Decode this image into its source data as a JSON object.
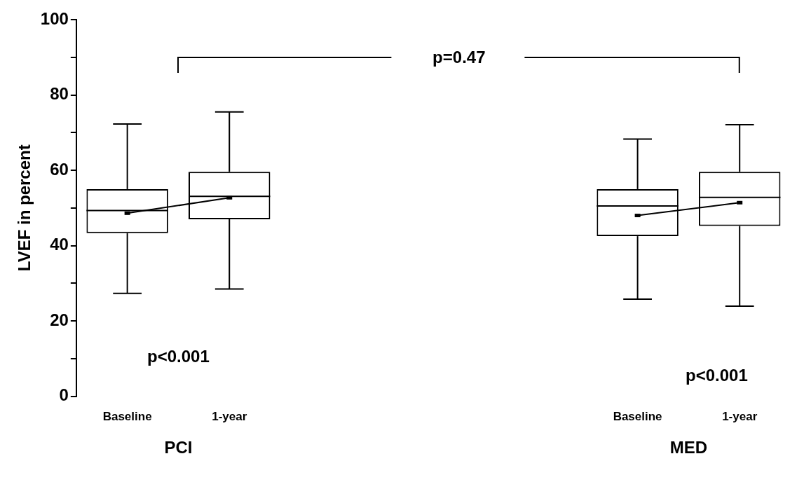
{
  "chart_data": {
    "type": "box",
    "ylabel": "LVEF in percent",
    "categories": [
      "Baseline",
      "1-year",
      null,
      null,
      null,
      "Baseline",
      "1-year"
    ],
    "boxes": [
      {
        "low": 27.3,
        "q1": 43.3,
        "median": 49.3,
        "q3": 55,
        "high": 72.3,
        "mean": 48.6
      },
      {
        "low": 28.5,
        "q1": 47,
        "median": 53.1,
        "q3": 59.6,
        "high": 75.5,
        "mean": 52.7
      },
      null,
      null,
      null,
      {
        "low": 25.8,
        "q1": 42.5,
        "median": 50.5,
        "q3": 55,
        "high": 68.3,
        "mean": 48
      },
      {
        "low": 23.9,
        "q1": 45.2,
        "median": 52.8,
        "q3": 59.6,
        "high": 72.1,
        "mean": 51.4
      }
    ],
    "series": [
      {
        "type": "line",
        "color": "#000000",
        "values": [
          48.6,
          52.7,
          null,
          null,
          null,
          null,
          null
        ]
      },
      {
        "type": "line",
        "color": "#000000",
        "values": [
          null,
          null,
          null,
          null,
          null,
          48,
          51.4
        ]
      }
    ],
    "marker": "none",
    "line_style": "solid",
    "grid": false,
    "legend": false,
    "ylim": [
      0,
      100
    ],
    "yticks": [
      0,
      {
        "value": 10,
        "label": null
      },
      20,
      {
        "value": 30,
        "label": null
      },
      40,
      {
        "value": 50,
        "label": null
      },
      60,
      {
        "value": 70,
        "label": null
      },
      80,
      {
        "value": 90,
        "label": null
      },
      100
    ],
    "annotations": [
      "p=0.47",
      "p<0.001",
      "p<0.001",
      "PCI",
      "MED"
    ]
  }
}
